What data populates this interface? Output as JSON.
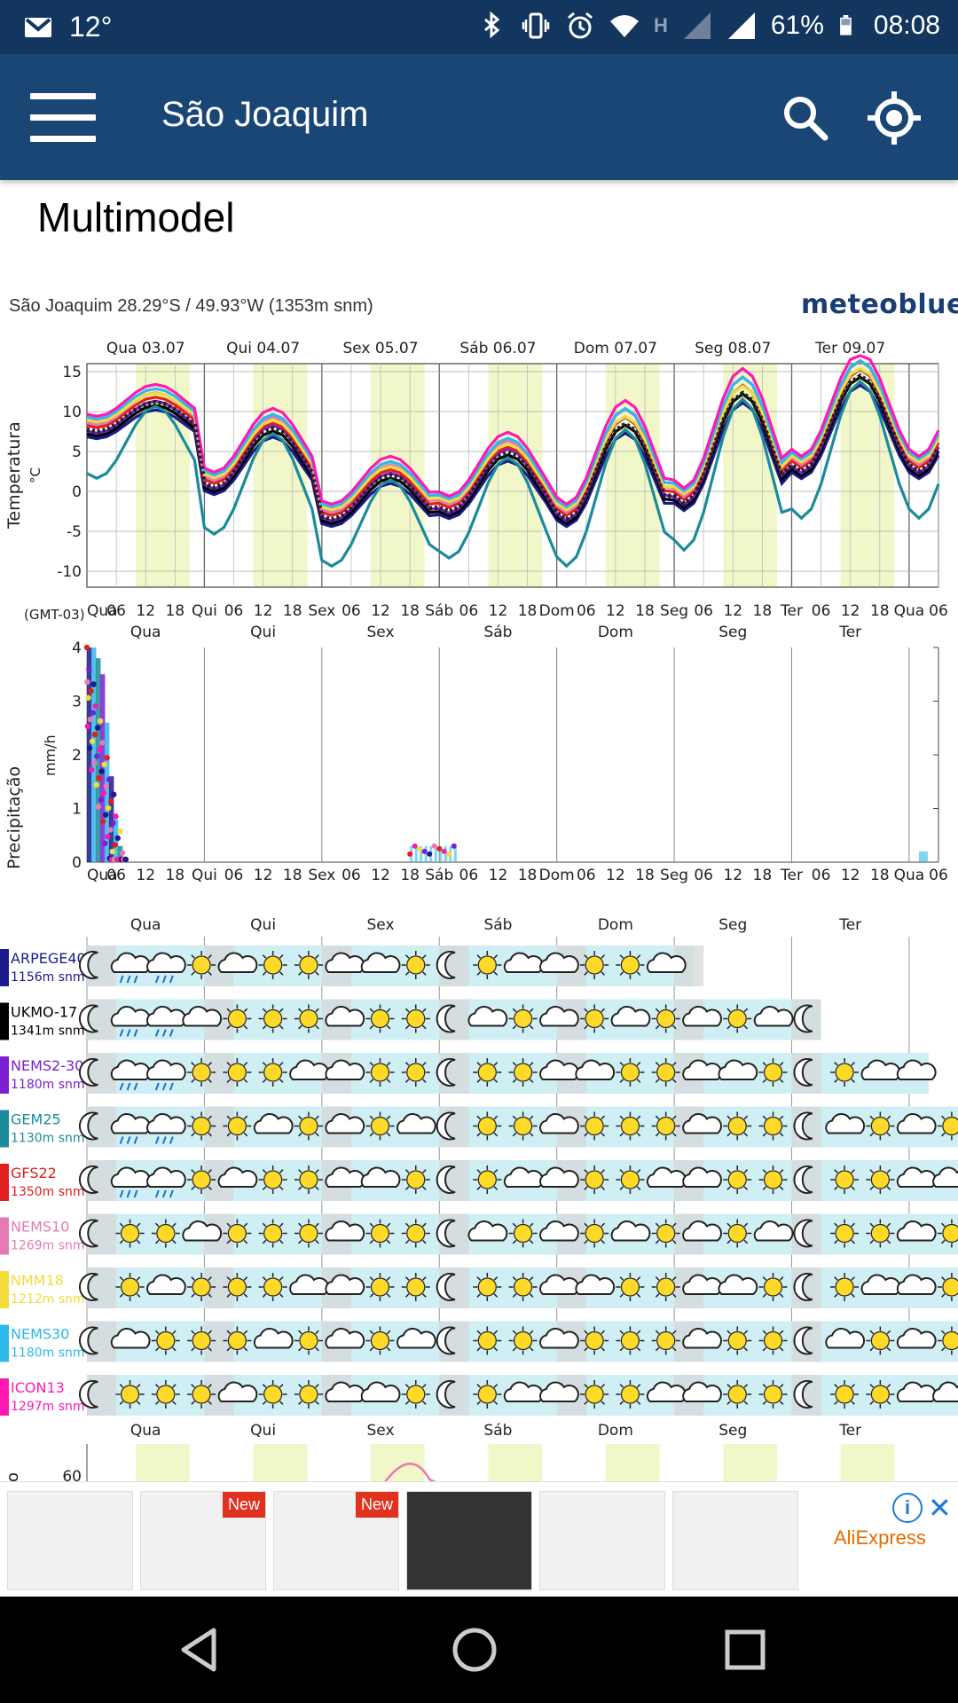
{
  "status": {
    "temp": "12°",
    "battery": "61%",
    "time": "08:08",
    "network": "H"
  },
  "appbar": {
    "title": "São Joaquim"
  },
  "page": {
    "section_title": "Multimodel"
  },
  "location": {
    "text": "São Joaquim  28.29°S / 49.93°W (1353m snm)",
    "logo": "meteoblue"
  },
  "chart": {
    "days": [
      "Qua 03.07",
      "Qui 04.07",
      "Sex 05.07",
      "Sáb 06.07",
      "Dom 07.07",
      "Seg 08.07",
      "Ter 09.07"
    ],
    "days_short": [
      "Qua",
      "Qui",
      "Sex",
      "Sáb",
      "Dom",
      "Seg",
      "Ter"
    ],
    "hour_labels": [
      "Qua",
      "06",
      "12",
      "18",
      "Qui",
      "06",
      "12",
      "18",
      "Sex",
      "06",
      "12",
      "18",
      "Sáb",
      "06",
      "12",
      "18",
      "Dom",
      "06",
      "12",
      "18",
      "Seg",
      "06",
      "12",
      "18",
      "Ter",
      "06",
      "12",
      "18",
      "Qua",
      "06"
    ],
    "temp_ylabel": "Temperatura",
    "temp_unit": "°C",
    "temp_ticks": [
      "15",
      "10",
      "5",
      "0",
      "-5",
      "-10"
    ],
    "tz": "(GMT-03)",
    "precip_ylabel": "Precipitação",
    "precip_unit": "mm/h",
    "precip_ticks": [
      "4",
      "3",
      "2",
      "1",
      "0"
    ],
    "bottom_tick": "60",
    "bottom_ylabel": "to"
  },
  "models": [
    {
      "name": "ARPEGE40",
      "elev": "1156m snm",
      "color": "#1a1a8a"
    },
    {
      "name": "UKMO-17",
      "elev": "1341m snm",
      "color": "#000000"
    },
    {
      "name": "NEMS2-30",
      "elev": "1180m snm",
      "color": "#7a1fd1"
    },
    {
      "name": "GEM25",
      "elev": "1130m snm",
      "color": "#1b8a9b"
    },
    {
      "name": "GFS22",
      "elev": "1350m snm",
      "color": "#e0201c"
    },
    {
      "name": "NEMS10",
      "elev": "1269m snm",
      "color": "#e77ab2"
    },
    {
      "name": "NMM18",
      "elev": "1212m snm",
      "color": "#f2dc3c"
    },
    {
      "name": "NEMS30",
      "elev": "1180m snm",
      "color": "#2fb8ea"
    },
    {
      "name": "ICON13",
      "elev": "1297m snm",
      "color": "#ff18b4"
    }
  ],
  "ad": {
    "brand": "AliExpress",
    "new_label": "New",
    "info": "i",
    "close": "✕"
  }
}
